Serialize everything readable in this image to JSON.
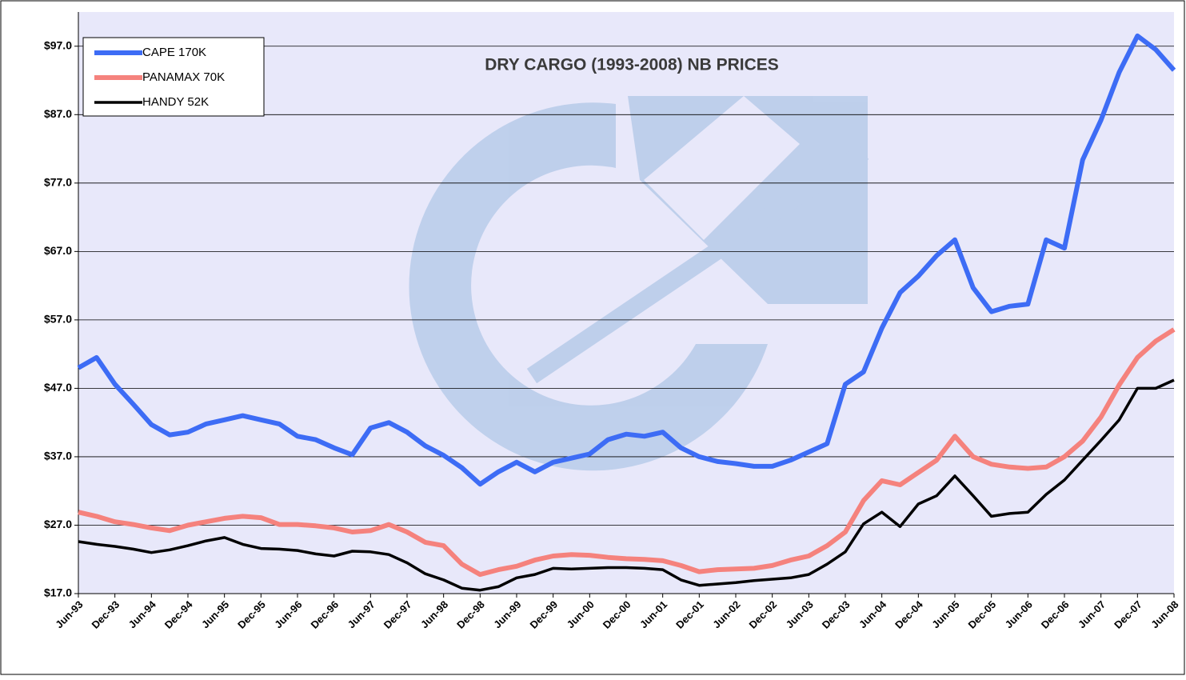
{
  "chart_data": {
    "type": "line",
    "title": "DRY CARGO (1993-2008) NB PRICES",
    "categories": [
      "Jun-93",
      null,
      "Dec-93",
      null,
      "Jun-94",
      null,
      "Dec-94",
      null,
      "Jun-95",
      null,
      "Dec-95",
      null,
      "Jun-96",
      null,
      "Dec-96",
      null,
      "Jun-97",
      null,
      "Dec-97",
      null,
      "Jun-98",
      null,
      "Dec-98",
      null,
      "Jun-99",
      null,
      "Dec-99",
      null,
      "Jun-00",
      null,
      "Dec-00",
      null,
      "Jun-01",
      null,
      "Dec-01",
      null,
      "Jun-02",
      null,
      "Dec-02",
      null,
      "Jun-03",
      null,
      "Dec-03",
      null,
      "Jun-04",
      null,
      "Dec-04",
      null,
      "Jun-05",
      null,
      "Dec-05",
      null,
      "Jun-06",
      null,
      "Dec-06",
      null,
      "Jun-07",
      null,
      "Dec-07",
      null,
      "Jun-08"
    ],
    "series": [
      {
        "name": "CAPE 170K",
        "color": "#3d6cf5",
        "values": [
          50,
          51.5,
          47.6,
          44.7,
          41.7,
          40.2,
          40.6,
          41.8,
          42.4,
          43,
          42.4,
          41.8,
          40,
          39.5,
          38.3,
          37.3,
          41.2,
          42,
          40.6,
          38.6,
          37.2,
          35.4,
          33,
          34.8,
          36.2,
          34.8,
          36.2,
          36.8,
          37.4,
          39.5,
          40.3,
          40,
          40.6,
          38.3,
          37,
          36.3,
          36,
          35.6,
          35.6,
          36.5,
          37.7,
          38.9,
          47.6,
          49.4,
          55.8,
          61,
          63.4,
          66.4,
          68.7,
          61.7,
          58.2,
          59,
          59.3,
          68.7,
          67.5,
          80.4,
          86.2,
          93.2,
          98.5,
          96.5,
          93.5
        ]
      },
      {
        "name": "PANAMAX 70K",
        "color": "#f5827d",
        "values": [
          28.9,
          28.3,
          27.5,
          27.1,
          26.6,
          26.2,
          27,
          27.5,
          28,
          28.3,
          28.1,
          27.1,
          27.1,
          26.9,
          26.6,
          26,
          26.2,
          27.1,
          26,
          24.5,
          24,
          21.3,
          19.8,
          20.5,
          21,
          21.9,
          22.5,
          22.7,
          22.6,
          22.3,
          22.1,
          22,
          21.8,
          21.1,
          20.2,
          20.5,
          20.6,
          20.7,
          21.1,
          21.9,
          22.5,
          24,
          26,
          30.6,
          33.5,
          32.9,
          34.7,
          36.5,
          40,
          37,
          35.9,
          35.5,
          35.3,
          35.5,
          37,
          39.3,
          42.8,
          47.5,
          51.5,
          53.9,
          55.6
        ]
      },
      {
        "name": "HANDY 52K",
        "color": "#000000",
        "values": [
          24.6,
          24.2,
          23.9,
          23.5,
          23,
          23.4,
          24,
          24.7,
          25.2,
          24.2,
          23.6,
          23.5,
          23.3,
          22.8,
          22.5,
          23.2,
          23.1,
          22.7,
          21.5,
          19.9,
          19,
          17.8,
          17.5,
          18,
          19.3,
          19.8,
          20.7,
          20.6,
          20.7,
          20.8,
          20.8,
          20.7,
          20.5,
          19,
          18.2,
          18.4,
          18.6,
          18.9,
          19.1,
          19.3,
          19.8,
          21.3,
          23.1,
          27.2,
          28.9,
          26.8,
          30.1,
          31.3,
          34.2,
          31.3,
          28.3,
          28.7,
          28.9,
          31.5,
          33.6,
          36.5,
          39.4,
          42.4,
          47,
          47,
          48.2
        ]
      }
    ],
    "ylim": [
      17,
      102
    ],
    "yticks": [
      {
        "value": 17,
        "label": "$17.0"
      },
      {
        "value": 27,
        "label": "$27.0"
      },
      {
        "value": 37,
        "label": "$37.0"
      },
      {
        "value": 47,
        "label": "$47.0"
      },
      {
        "value": 57,
        "label": "$57.0"
      },
      {
        "value": 67,
        "label": "$67.0"
      },
      {
        "value": 77,
        "label": "$77.0"
      },
      {
        "value": 87,
        "label": "$87.0"
      },
      {
        "value": 97,
        "label": "$97.0"
      }
    ],
    "grid": true,
    "legend": "upper left",
    "background": "#e8e8fa"
  }
}
